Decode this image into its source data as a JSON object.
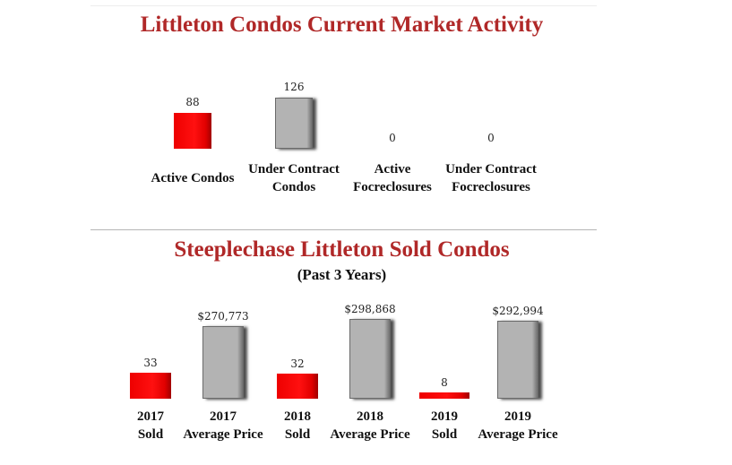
{
  "chart_data": [
    {
      "type": "bar",
      "title": "Littleton Condos Current Market Activity",
      "categories": [
        [
          "Active Condos"
        ],
        [
          "Under Contract",
          "Condos"
        ],
        [
          "Active",
          "Focreclosures"
        ],
        [
          "Under Contract",
          "Focreclosures"
        ]
      ],
      "values": [
        88,
        126,
        0,
        0
      ],
      "value_labels": [
        "88",
        "126",
        "0",
        "0"
      ],
      "colors": [
        "#ff0000",
        "#b3b3b3",
        "#ff0000",
        "#b3b3b3"
      ],
      "ylim": [
        0,
        126
      ]
    },
    {
      "type": "bar",
      "title": "Steeplechase Littleton Sold Condos",
      "subtitle": "(Past 3 Years)",
      "categories": [
        [
          "2017",
          "Sold"
        ],
        [
          "2017",
          "Average Price"
        ],
        [
          "2018",
          "Sold"
        ],
        [
          "2018",
          "Average Price"
        ],
        [
          "2019",
          "Sold"
        ],
        [
          "2019",
          "Average Price"
        ]
      ],
      "series": [
        {
          "name": "Sold",
          "kind": "count",
          "values": [
            33,
            null,
            32,
            null,
            8,
            null
          ],
          "color": "#ff0000"
        },
        {
          "name": "Average Price",
          "kind": "price",
          "values": [
            null,
            270773,
            null,
            298868,
            null,
            292994
          ],
          "color": "#b3b3b3"
        }
      ],
      "value_labels": [
        "33",
        "$270,773",
        "32",
        "$298,868",
        "8",
        "$292,994"
      ]
    }
  ]
}
